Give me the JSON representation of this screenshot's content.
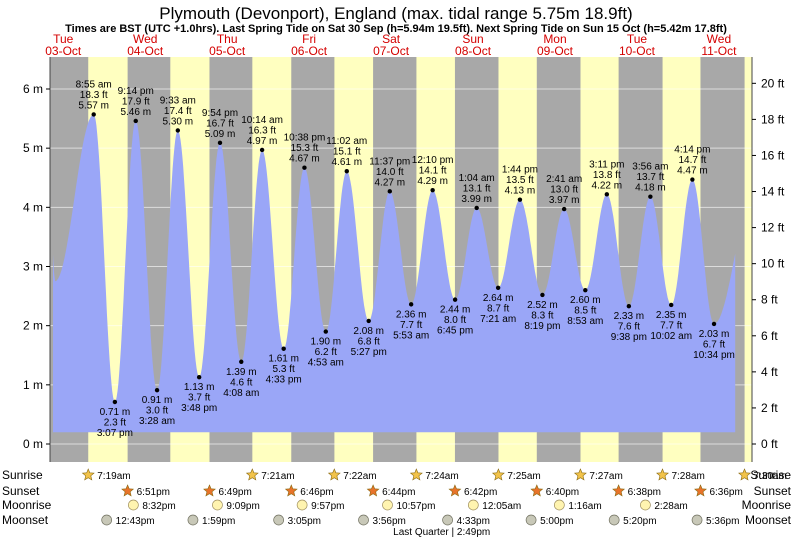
{
  "chart_data": {
    "type": "area",
    "title": "Plymouth (Devonport), England (max. tidal range 5.75m 18.9ft)",
    "subtitle": "Times are BST (UTC +1.0hrs). Last Spring Tide on Sat 30 Sep (h=5.94m 19.5ft). Next Spring Tide on Sun 15 Oct (h=5.42m 17.8ft)",
    "ylabel_left": "m",
    "ylabel_right": "ft",
    "ylim_m": [
      -0.35,
      6.35
    ],
    "left_ticks": [
      "0 m",
      "1 m",
      "2 m",
      "3 m",
      "4 m",
      "5 m",
      "6 m"
    ],
    "right_ticks": [
      "0 ft",
      "2 ft",
      "4 ft",
      "6 ft",
      "8 ft",
      "10 ft",
      "12 ft",
      "14 ft",
      "16 ft",
      "18 ft",
      "20 ft"
    ],
    "days": [
      {
        "dow": "Tue",
        "date": "03-Oct"
      },
      {
        "dow": "Wed",
        "date": "04-Oct"
      },
      {
        "dow": "Thu",
        "date": "05-Oct"
      },
      {
        "dow": "Fri",
        "date": "06-Oct"
      },
      {
        "dow": "Sat",
        "date": "07-Oct"
      },
      {
        "dow": "Sun",
        "date": "08-Oct"
      },
      {
        "dow": "Mon",
        "date": "09-Oct"
      },
      {
        "dow": "Tue",
        "date": "10-Oct"
      },
      {
        "dow": "Wed",
        "date": "11-Oct"
      }
    ],
    "daylight": [
      {
        "rise": 7.32,
        "set": 18.85
      },
      {
        "rise": 7.35,
        "set": 18.82
      },
      {
        "rise": 7.37,
        "set": 18.77
      },
      {
        "rise": 7.4,
        "set": 18.73
      },
      {
        "rise": 7.42,
        "set": 18.7
      },
      {
        "rise": 7.45,
        "set": 18.67
      },
      {
        "rise": 7.47,
        "set": 18.63
      },
      {
        "rise": 7.5,
        "set": 18.6
      }
    ],
    "series": [
      {
        "name": "Tide",
        "points": [
          {
            "kind": "high",
            "t": 8.92,
            "time": "8:55 am",
            "ft": "18.3 ft",
            "m": "5.57 m",
            "h": 5.57
          },
          {
            "kind": "low",
            "t": 15.12,
            "time": "3:07 pm",
            "ft": "2.3 ft",
            "m": "0.71 m",
            "h": 0.71
          },
          {
            "kind": "high",
            "t": 21.23,
            "time": "9:14 pm",
            "ft": "17.9 ft",
            "m": "5.46 m",
            "h": 5.46
          },
          {
            "kind": "low",
            "t": 27.47,
            "time": "3:28 am",
            "ft": "3.0 ft",
            "m": "0.91 m",
            "h": 0.91
          },
          {
            "kind": "high",
            "t": 33.55,
            "time": "9:33 am",
            "ft": "17.4 ft",
            "m": "5.30 m",
            "h": 5.3
          },
          {
            "kind": "low",
            "t": 39.8,
            "time": "3:48 pm",
            "ft": "3.7 ft",
            "m": "1.13 m",
            "h": 1.13
          },
          {
            "kind": "high",
            "t": 45.9,
            "time": "9:54 pm",
            "ft": "16.7 ft",
            "m": "5.09 m",
            "h": 5.09
          },
          {
            "kind": "low",
            "t": 52.13,
            "time": "4:08 am",
            "ft": "4.6 ft",
            "m": "1.39 m",
            "h": 1.39
          },
          {
            "kind": "high",
            "t": 58.23,
            "time": "10:14 am",
            "ft": "16.3 ft",
            "m": "4.97 m",
            "h": 4.97
          },
          {
            "kind": "low",
            "t": 64.55,
            "time": "4:33 pm",
            "ft": "5.3 ft",
            "m": "1.61 m",
            "h": 1.61
          },
          {
            "kind": "high",
            "t": 70.63,
            "time": "10:38 pm",
            "ft": "15.3 ft",
            "m": "4.67 m",
            "h": 4.67
          },
          {
            "kind": "low",
            "t": 76.88,
            "time": "4:53 am",
            "ft": "6.2 ft",
            "m": "1.90 m",
            "h": 1.9
          },
          {
            "kind": "high",
            "t": 83.03,
            "time": "11:02 am",
            "ft": "15.1 ft",
            "m": "4.61 m",
            "h": 4.61
          },
          {
            "kind": "low",
            "t": 89.45,
            "time": "5:27 pm",
            "ft": "6.8 ft",
            "m": "2.08 m",
            "h": 2.08
          },
          {
            "kind": "high",
            "t": 95.62,
            "time": "11:37 pm",
            "ft": "14.0 ft",
            "m": "4.27 m",
            "h": 4.27
          },
          {
            "kind": "low",
            "t": 101.88,
            "time": "5:53 am",
            "ft": "7.7 ft",
            "m": "2.36 m",
            "h": 2.36
          },
          {
            "kind": "high",
            "t": 108.17,
            "time": "12:10 pm",
            "ft": "14.1 ft",
            "m": "4.29 m",
            "h": 4.29
          },
          {
            "kind": "low",
            "t": 114.75,
            "time": "6:45 pm",
            "ft": "8.0 ft",
            "m": "2.44 m",
            "h": 2.44
          },
          {
            "kind": "high",
            "t": 121.07,
            "time": "1:04 am",
            "ft": "13.1 ft",
            "m": "3.99 m",
            "h": 3.99
          },
          {
            "kind": "low",
            "t": 127.35,
            "time": "7:21 am",
            "ft": "8.7 ft",
            "m": "2.64 m",
            "h": 2.64
          },
          {
            "kind": "high",
            "t": 133.73,
            "time": "1:44 pm",
            "ft": "13.5 ft",
            "m": "4.13 m",
            "h": 4.13
          },
          {
            "kind": "low",
            "t": 140.32,
            "time": "8:19 pm",
            "ft": "8.3 ft",
            "m": "2.52 m",
            "h": 2.52
          },
          {
            "kind": "high",
            "t": 146.68,
            "time": "2:41 am",
            "ft": "13.0 ft",
            "m": "3.97 m",
            "h": 3.97
          },
          {
            "kind": "low",
            "t": 152.88,
            "time": "8:53 am",
            "ft": "8.5 ft",
            "m": "2.60 m",
            "h": 2.6
          },
          {
            "kind": "high",
            "t": 159.18,
            "time": "3:11 pm",
            "ft": "13.8 ft",
            "m": "4.22 m",
            "h": 4.22
          },
          {
            "kind": "low",
            "t": 165.63,
            "time": "9:38 pm",
            "ft": "7.6 ft",
            "m": "2.33 m",
            "h": 2.33
          },
          {
            "kind": "high",
            "t": 171.93,
            "time": "3:56 am",
            "ft": "13.7 ft",
            "m": "4.18 m",
            "h": 4.18
          },
          {
            "kind": "low",
            "t": 178.03,
            "time": "10:02 am",
            "ft": "7.7 ft",
            "m": "2.35 m",
            "h": 2.35
          },
          {
            "kind": "high",
            "t": 184.23,
            "time": "4:14 pm",
            "ft": "14.7 ft",
            "m": "4.47 m",
            "h": 4.47
          },
          {
            "kind": "low",
            "t": 190.57,
            "time": "10:34 pm",
            "ft": "6.7 ft",
            "m": "2.03 m",
            "h": 2.03
          }
        ]
      }
    ],
    "astro": {
      "row_labels": [
        "Sunrise",
        "Sunset",
        "Moonrise",
        "Moonset"
      ],
      "sunrise": [
        {
          "t": 7.32,
          "time": "7:19am"
        },
        {
          "t": 55.35,
          "time": "7:21am"
        },
        {
          "t": 79.37,
          "time": "7:22am"
        },
        {
          "t": 103.4,
          "time": "7:24am"
        },
        {
          "t": 127.42,
          "time": "7:25am"
        },
        {
          "t": 151.45,
          "time": "7:27am"
        },
        {
          "t": 175.47,
          "time": "7:28am"
        },
        {
          "t": 199.5,
          "time": "7:30am"
        }
      ],
      "sunset": [
        {
          "t": 18.85,
          "time": "6:51pm"
        },
        {
          "t": 42.82,
          "time": "6:49pm"
        },
        {
          "t": 66.77,
          "time": "6:46pm"
        },
        {
          "t": 90.73,
          "time": "6:44pm"
        },
        {
          "t": 114.7,
          "time": "6:42pm"
        },
        {
          "t": 138.67,
          "time": "6:40pm"
        },
        {
          "t": 162.63,
          "time": "6:38pm"
        },
        {
          "t": 186.6,
          "time": "6:36pm"
        }
      ],
      "moonrise": [
        {
          "t": 20.53,
          "time": "8:32pm"
        },
        {
          "t": 45.15,
          "time": "9:09pm"
        },
        {
          "t": 69.95,
          "time": "9:57pm"
        },
        {
          "t": 94.95,
          "time": "10:57pm"
        },
        {
          "t": 120.08,
          "time": "12:05am"
        },
        {
          "t": 145.27,
          "time": "1:16am"
        },
        {
          "t": 170.47,
          "time": "2:28am"
        }
      ],
      "moonset": [
        {
          "t": 12.72,
          "time": "12:43pm"
        },
        {
          "t": 37.98,
          "time": "1:59pm"
        },
        {
          "t": 63.08,
          "time": "3:05pm"
        },
        {
          "t": 87.93,
          "time": "3:56pm"
        },
        {
          "t": 112.55,
          "time": "4:33pm"
        },
        {
          "t": 137.0,
          "time": "5:00pm"
        },
        {
          "t": 161.33,
          "time": "5:20pm"
        },
        {
          "t": 185.6,
          "time": "5:36pm"
        }
      ],
      "moon_phase": {
        "t": 110.82,
        "label": "Last Quarter | 2:49pm"
      }
    },
    "colors": {
      "night": "#a8a8a8",
      "day": "#ffffc0",
      "tide": "#9aa6f7",
      "dow": "#d40000",
      "text": "#000000",
      "sun": "#f2c34a",
      "sunset": "#e8732a",
      "moonrise": "#fff4b0",
      "moonset": "#c8c8b8"
    }
  }
}
